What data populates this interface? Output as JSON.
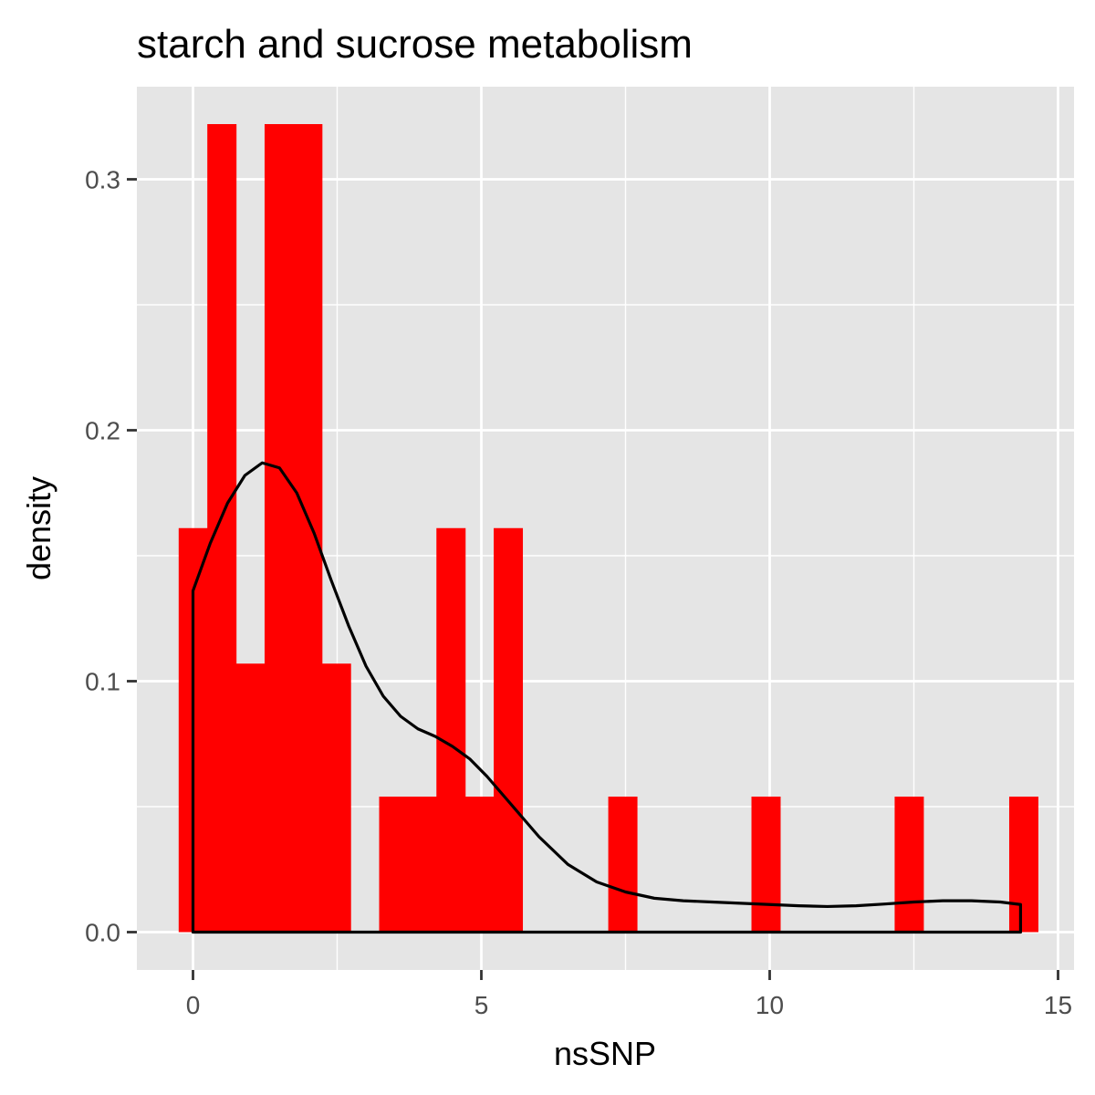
{
  "chart_data": {
    "type": "bar",
    "title": "starch and sucrose metabolism",
    "xlabel": "nsSNP",
    "ylabel": "density",
    "xlim": [
      -1,
      15
    ],
    "ylim": [
      -0.012,
      0.338
    ],
    "x_ticks": [
      0,
      5,
      10,
      15
    ],
    "y_ticks": [
      0.0,
      0.1,
      0.2,
      0.3
    ],
    "x_tick_labels": [
      "0",
      "5",
      "10",
      "15"
    ],
    "y_tick_labels": [
      "0.0",
      "0.1",
      "0.2",
      "0.3"
    ],
    "grid": true,
    "legend": "none",
    "colors": {
      "panel_background": "#E5E5E5",
      "grid": "#FFFFFF",
      "bar_fill": "#FF0000",
      "density_line": "#000000",
      "tick_text": "#4D4D4D"
    },
    "histogram": {
      "bin_width": 0.4966,
      "bin_start": -0.2483,
      "bin_count": 30,
      "densities": [
        0.161,
        0.322,
        0.107,
        0.322,
        0.322,
        0.107,
        0.0,
        0.054,
        0.054,
        0.161,
        0.054,
        0.161,
        0.0,
        0.0,
        0.0,
        0.054,
        0.0,
        0.0,
        0.0,
        0.0,
        0.054,
        0.0,
        0.0,
        0.0,
        0.0,
        0.054,
        0.0,
        0.0,
        0.0,
        0.054
      ]
    },
    "density_curve": {
      "x": [
        0,
        0.3,
        0.6,
        0.9,
        1.2,
        1.5,
        1.8,
        2.1,
        2.4,
        2.7,
        3.0,
        3.3,
        3.6,
        3.9,
        4.2,
        4.5,
        4.8,
        5.1,
        5.4,
        5.7,
        6.0,
        6.5,
        7.0,
        7.5,
        8.0,
        8.5,
        9.0,
        9.5,
        10.0,
        10.5,
        11.0,
        11.5,
        12.0,
        12.5,
        13.0,
        13.5,
        14.0,
        14.35
      ],
      "y": [
        0.136,
        0.155,
        0.171,
        0.182,
        0.187,
        0.185,
        0.175,
        0.159,
        0.14,
        0.122,
        0.106,
        0.094,
        0.086,
        0.081,
        0.078,
        0.074,
        0.069,
        0.062,
        0.054,
        0.046,
        0.038,
        0.027,
        0.02,
        0.016,
        0.0135,
        0.0125,
        0.012,
        0.0115,
        0.011,
        0.0105,
        0.0102,
        0.0105,
        0.0112,
        0.012,
        0.0125,
        0.0125,
        0.012,
        0.011
      ]
    }
  }
}
